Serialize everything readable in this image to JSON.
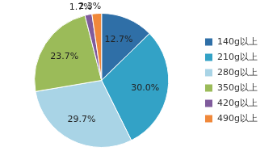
{
  "chart_data": {
    "type": "pie",
    "categories": [
      "140g以上",
      "210g以上",
      "280g以上",
      "350g以上",
      "420g以上",
      "490g以上"
    ],
    "values": [
      12.7,
      30.0,
      29.7,
      23.7,
      1.7,
      2.3
    ],
    "value_labels": [
      "12.7%",
      "30.0%",
      "29.7%",
      "23.7%",
      "1.7%",
      "2.3%"
    ],
    "colors": [
      "#2f6fa7",
      "#33a2c6",
      "#a9d4e6",
      "#9bbb59",
      "#7f5b9c",
      "#f0883a"
    ],
    "legend": "right",
    "data_labels": true
  }
}
